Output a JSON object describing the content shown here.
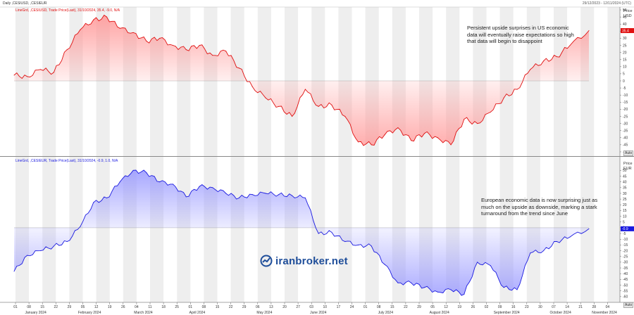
{
  "header": {
    "title": "Daily ,CESIUSD, ,CESIEUR",
    "date_range": "29/12/2023 - 12/11/2024 (UTC)"
  },
  "annotations": {
    "us": "Persistent upside surprises in US economic data will eventually raise expectations so high that data will begin to disappoint",
    "eu": "European economic data is now surprising just as much on the upside as downside, marking a stark turnaround from the trend since June"
  },
  "watermark": "iranbroker.net",
  "axis_titles": {
    "top": [
      "Price",
      "USD"
    ],
    "bottom": [
      "Price",
      "EUR"
    ],
    "auto": "Auto"
  },
  "colors": {
    "us_line": "#e01010",
    "us_fill": "#ff9a9a",
    "eu_line": "#1a1ae0",
    "eu_fill": "#9a9aff",
    "grid_band": "#eeeeee",
    "badge_us": "#e01010",
    "badge_eu": "#1a1ae0"
  },
  "x_axis": {
    "day_labels": [
      "01",
      "08",
      "15",
      "22",
      "29",
      "05",
      "12",
      "19",
      "26",
      "04",
      "11",
      "18",
      "25",
      "01",
      "08",
      "15",
      "22",
      "29",
      "06",
      "13",
      "20",
      "27",
      "03",
      "10",
      "17",
      "24",
      "01",
      "08",
      "15",
      "22",
      "29",
      "05",
      "12",
      "19",
      "26",
      "02",
      "09",
      "16",
      "23",
      "30",
      "07",
      "14",
      "21",
      "28",
      "04",
      "11"
    ],
    "month_labels": [
      {
        "label": "January 2024",
        "tick": 2
      },
      {
        "label": "February 2024",
        "tick": 6
      },
      {
        "label": "March 2024",
        "tick": 10
      },
      {
        "label": "April 2024",
        "tick": 14
      },
      {
        "label": "May 2024",
        "tick": 19
      },
      {
        "label": "June 2024",
        "tick": 23
      },
      {
        "label": "July 2024",
        "tick": 28
      },
      {
        "label": "August 2024",
        "tick": 32
      },
      {
        "label": "September 2024",
        "tick": 37
      },
      {
        "label": "October 2024",
        "tick": 41
      },
      {
        "label": "November 2024",
        "tick": 45
      }
    ]
  },
  "chart_data": [
    {
      "type": "area",
      "legend": "LineGrd, ,CESIUSD, Trade Price(Last), 31/10/2024, 35.4, -9.0, N/A",
      "series_name": ",CESIUSD",
      "current_value": "35.4",
      "ylim": [
        -52,
        52
      ],
      "y_ticks": [
        50,
        45,
        40,
        35,
        30,
        25,
        20,
        15,
        10,
        5,
        0,
        -5,
        -10,
        -15,
        -20,
        -25,
        -30,
        -35,
        -40,
        -45,
        -50
      ],
      "baseline": 0,
      "x_dates": [
        "2024-01-01",
        "2024-01-08",
        "2024-01-15",
        "2024-01-22",
        "2024-01-29",
        "2024-02-05",
        "2024-02-12",
        "2024-02-19",
        "2024-02-26",
        "2024-03-04",
        "2024-03-11",
        "2024-03-18",
        "2024-03-25",
        "2024-04-01",
        "2024-04-08",
        "2024-04-15",
        "2024-04-22",
        "2024-04-29",
        "2024-05-06",
        "2024-05-13",
        "2024-05-20",
        "2024-05-27",
        "2024-06-03",
        "2024-06-10",
        "2024-06-17",
        "2024-06-24",
        "2024-07-01",
        "2024-07-08",
        "2024-07-15",
        "2024-07-22",
        "2024-07-29",
        "2024-08-05",
        "2024-08-12",
        "2024-08-19",
        "2024-08-26",
        "2024-09-02",
        "2024-09-09",
        "2024-09-16",
        "2024-09-23",
        "2024-09-30",
        "2024-10-07",
        "2024-10-14",
        "2024-10-21",
        "2024-10-31"
      ],
      "values": [
        4,
        3,
        8,
        6,
        22,
        36,
        43,
        45,
        37,
        34,
        28,
        30,
        25,
        22,
        25,
        18,
        21,
        9,
        -4,
        -12,
        -18,
        -25,
        -6,
        -18,
        -17,
        -25,
        -43,
        -45,
        -38,
        -33,
        -42,
        -37,
        -40,
        -45,
        -27,
        -30,
        -22,
        -12,
        -6,
        8,
        14,
        17,
        25,
        35.4
      ]
    },
    {
      "type": "area",
      "legend": "LineGrd, ,CESIEUR, Trade Price(Last), 31/10/2024, -0.9, 1.0, N/A",
      "series_name": ",CESIEUR",
      "current_value": "-0.9",
      "ylim": [
        -65,
        60
      ],
      "y_ticks": [
        50,
        45,
        40,
        35,
        30,
        25,
        20,
        15,
        10,
        5,
        0,
        -5,
        -10,
        -15,
        -20,
        -25,
        -30,
        -35,
        -40,
        -45,
        -50,
        -55,
        -60
      ],
      "baseline": 0,
      "x_dates": [
        "2024-01-01",
        "2024-01-08",
        "2024-01-15",
        "2024-01-22",
        "2024-01-29",
        "2024-02-05",
        "2024-02-12",
        "2024-02-19",
        "2024-02-26",
        "2024-03-04",
        "2024-03-11",
        "2024-03-18",
        "2024-03-25",
        "2024-04-01",
        "2024-04-08",
        "2024-04-15",
        "2024-04-22",
        "2024-04-29",
        "2024-05-06",
        "2024-05-13",
        "2024-05-20",
        "2024-05-27",
        "2024-06-03",
        "2024-06-10",
        "2024-06-17",
        "2024-06-24",
        "2024-07-01",
        "2024-07-08",
        "2024-07-15",
        "2024-07-22",
        "2024-07-29",
        "2024-08-05",
        "2024-08-12",
        "2024-08-19",
        "2024-08-26",
        "2024-09-02",
        "2024-09-09",
        "2024-09-16",
        "2024-09-23",
        "2024-09-30",
        "2024-10-07",
        "2024-10-14",
        "2024-10-21",
        "2024-10-31"
      ],
      "values": [
        -38,
        -24,
        -20,
        -16,
        -12,
        1,
        22,
        26,
        40,
        50,
        48,
        40,
        38,
        27,
        36,
        35,
        30,
        26,
        29,
        30,
        29,
        28,
        26,
        -5,
        -4,
        -12,
        -15,
        -16,
        -32,
        -48,
        -48,
        -52,
        -56,
        -54,
        -58,
        -30,
        -33,
        -52,
        -54,
        -22,
        -20,
        -12,
        -8,
        -0.9
      ]
    }
  ]
}
